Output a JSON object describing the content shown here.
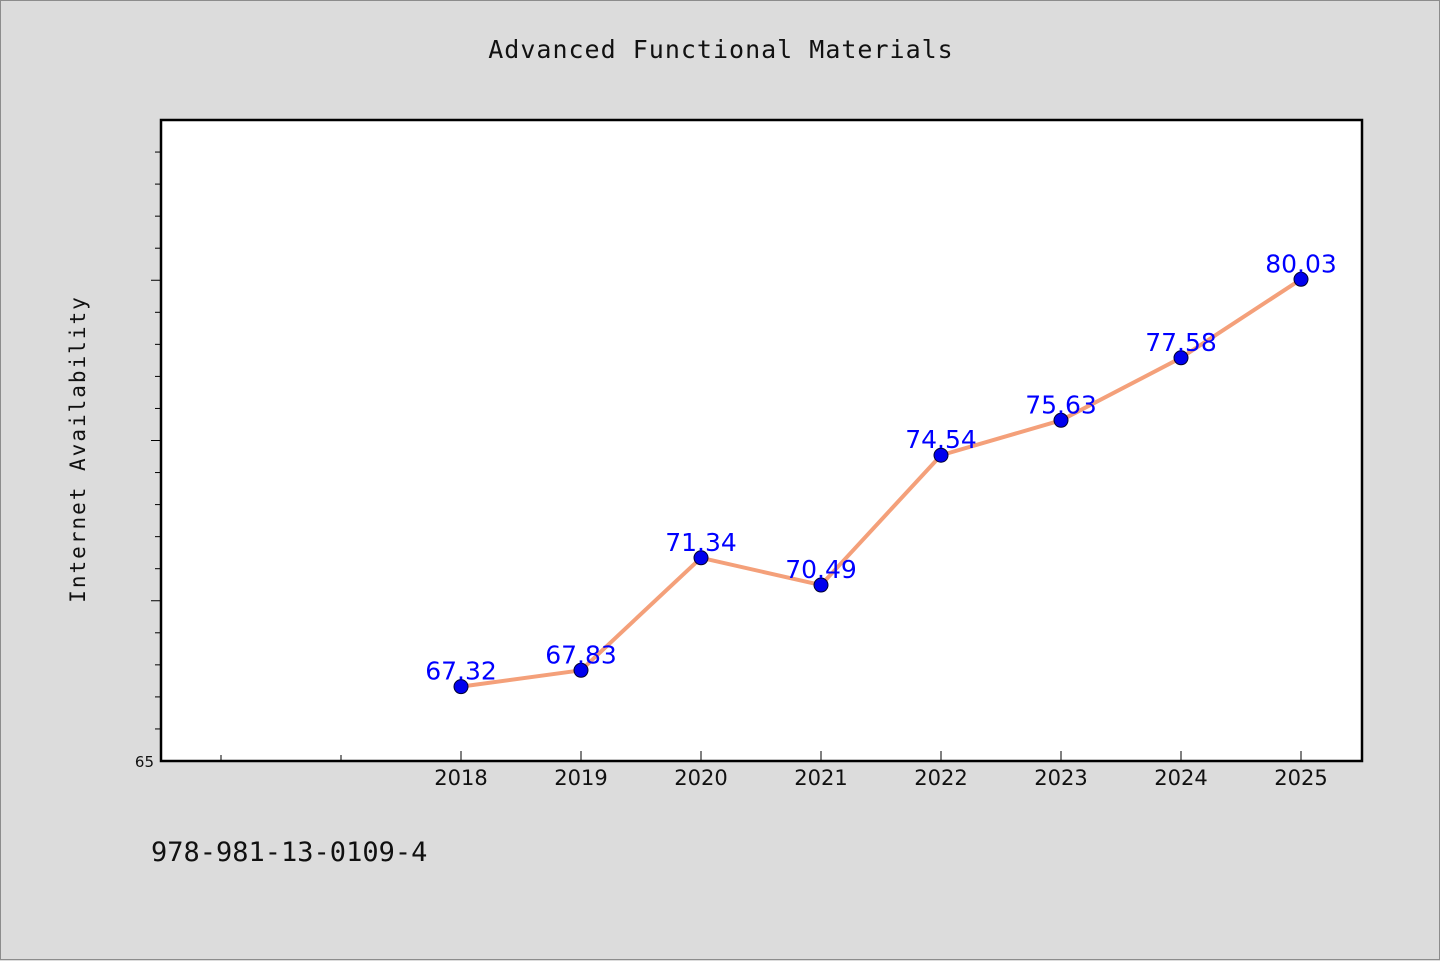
{
  "chart_data": {
    "type": "line",
    "title": "Advanced Functional Materials",
    "xlabel": "",
    "ylabel": "Internet Availability",
    "categories": [
      "2018",
      "2019",
      "2020",
      "2021",
      "2022",
      "2023",
      "2024",
      "2025"
    ],
    "series": [
      {
        "values": [
          67.32,
          67.83,
          71.34,
          70.49,
          74.54,
          75.63,
          77.58,
          80.03
        ],
        "data_labels": [
          "67.32",
          "67.83",
          "71.34",
          "70.49",
          "74.54",
          "75.63",
          "77.58",
          "80.03"
        ]
      }
    ],
    "ylim": [
      65,
      85
    ],
    "y_tick_labels": [
      "65"
    ],
    "x_minor_positions": [
      -2,
      -1
    ],
    "grid": false,
    "legend": "none",
    "colors": {
      "line": "#f4a07a",
      "marker": "#0000ee",
      "data_label": "#0000ff",
      "plot_background": "#ffffff",
      "figure_background": "#dcdcdc"
    }
  },
  "footer": {
    "code": "978-981-13-0109-4"
  }
}
